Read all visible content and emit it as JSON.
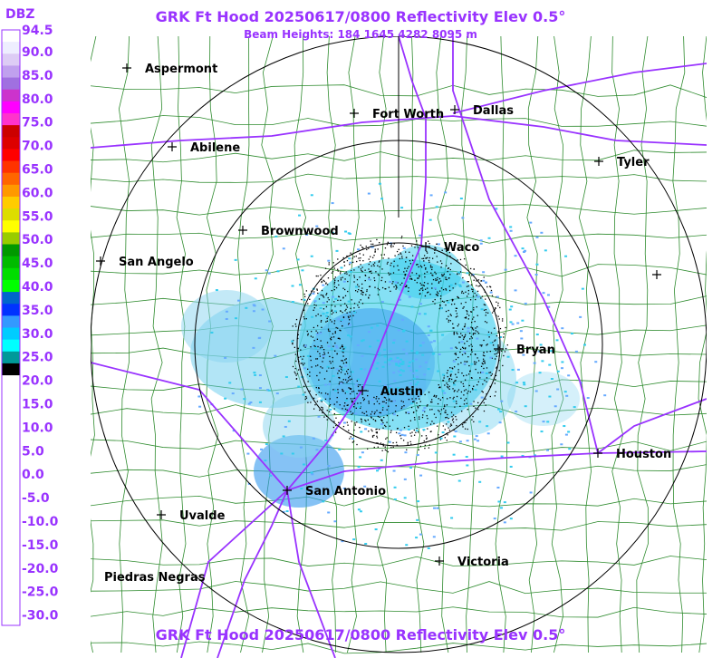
{
  "header": {
    "title": "GRK Ft Hood 20250617/0800 Reflectivity Elev 0.5°",
    "subtitle": "Beam Heights: 184 1645 4282 8095 m"
  },
  "legend": {
    "unit": "DBZ",
    "labels": [
      "94.5",
      "90.0",
      "85.0",
      "80.0",
      "75.0",
      "70.0",
      "65.0",
      "60.0",
      "55.0",
      "50.0",
      "45.0",
      "40.0",
      "35.0",
      "30.0",
      "25.0",
      "20.0",
      "15.0",
      "10.0",
      "5.0",
      "0.0",
      "-5.0",
      "-10.0",
      "-15.0",
      "-20.0",
      "-25.0",
      "-30.0"
    ]
  },
  "cities": [
    "Aspermont",
    "Abilene",
    "Fort Worth",
    "Dallas",
    "Tyler",
    "Brownwood",
    "San Angelo",
    "Waco",
    "Bryan",
    "Austin",
    "Houston",
    "San Antonio",
    "Uvalde",
    "Victoria",
    "Piedras Negras"
  ],
  "footer": {
    "title": "GRK Ft Hood 20250617/0800 Reflectivity Elev 0.5°"
  }
}
